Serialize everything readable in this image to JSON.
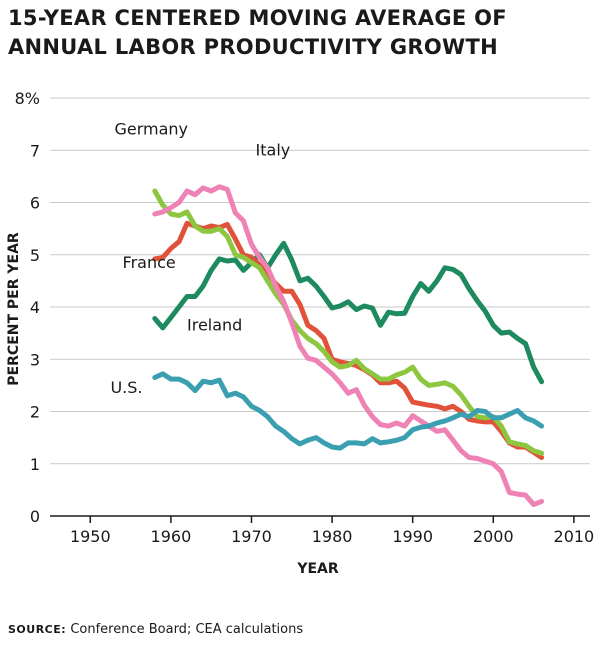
{
  "header": {
    "title_line1": "15-YEAR CENTERED MOVING AVERAGE OF",
    "title_line2": "ANNUAL LABOR PRODUCTIVITY GROWTH"
  },
  "footer": {
    "source_label": "SOURCE:",
    "source_text": "Conference Board; CEA calculations"
  },
  "chart_data": {
    "type": "line",
    "title": "15-YEAR CENTERED MOVING AVERAGE OF ANNUAL LABOR PRODUCTIVITY GROWTH",
    "xlabel": "YEAR",
    "ylabel": "PERCENT PER YEAR",
    "xlim": [
      1945,
      2012
    ],
    "ylim": [
      0,
      8
    ],
    "x_ticks": [
      1950,
      1960,
      1970,
      1980,
      1990,
      2000,
      2010
    ],
    "y_ticks": [
      0,
      1,
      2,
      3,
      4,
      5,
      6,
      7,
      8
    ],
    "y_tick_labels": [
      "0",
      "1",
      "2",
      "3",
      "4",
      "5",
      "6",
      "7",
      "8%"
    ],
    "grid": true,
    "legend": "inline labels",
    "series": [
      {
        "name": "Ireland",
        "color": "#1d8a60",
        "label_at": [
          1962,
          3.55
        ],
        "x": [
          1958,
          1959,
          1960,
          1961,
          1962,
          1963,
          1964,
          1965,
          1966,
          1967,
          1968,
          1969,
          1970,
          1971,
          1972,
          1973,
          1974,
          1975,
          1976,
          1977,
          1978,
          1979,
          1980,
          1981,
          1982,
          1983,
          1984,
          1985,
          1986,
          1987,
          1988,
          1989,
          1990,
          1991,
          1992,
          1993,
          1994,
          1995,
          1996,
          1997,
          1998,
          1999,
          2000,
          2001,
          2002,
          2003,
          2004,
          2005,
          2006
        ],
        "values": [
          3.78,
          3.6,
          3.8,
          4.0,
          4.2,
          4.2,
          4.4,
          4.7,
          4.92,
          4.88,
          4.9,
          4.7,
          4.85,
          5.0,
          4.75,
          5.0,
          5.22,
          4.9,
          4.5,
          4.55,
          4.4,
          4.2,
          3.98,
          4.02,
          4.1,
          3.95,
          4.02,
          3.98,
          3.65,
          3.9,
          3.87,
          3.88,
          4.2,
          4.45,
          4.3,
          4.5,
          4.75,
          4.72,
          4.62,
          4.35,
          4.12,
          3.92,
          3.65,
          3.5,
          3.52,
          3.4,
          3.3,
          2.85,
          2.57
        ]
      },
      {
        "name": "France",
        "color": "#e1523b",
        "label_at": [
          1954,
          4.75
        ],
        "x": [
          1958,
          1959,
          1960,
          1961,
          1962,
          1963,
          1964,
          1965,
          1966,
          1967,
          1968,
          1969,
          1970,
          1971,
          1972,
          1973,
          1974,
          1975,
          1976,
          1977,
          1978,
          1979,
          1980,
          1981,
          1982,
          1983,
          1984,
          1985,
          1986,
          1987,
          1988,
          1989,
          1990,
          1991,
          1992,
          1993,
          1994,
          1995,
          1996,
          1997,
          1998,
          1999,
          2000,
          2001,
          2002,
          2003,
          2004,
          2005,
          2006
        ],
        "values": [
          4.92,
          4.95,
          5.12,
          5.25,
          5.6,
          5.55,
          5.5,
          5.55,
          5.52,
          5.58,
          5.3,
          5.0,
          4.95,
          4.8,
          4.6,
          4.45,
          4.3,
          4.3,
          4.05,
          3.65,
          3.55,
          3.4,
          3.0,
          2.95,
          2.92,
          2.88,
          2.8,
          2.7,
          2.55,
          2.55,
          2.58,
          2.45,
          2.18,
          2.15,
          2.12,
          2.1,
          2.05,
          2.1,
          2.0,
          1.85,
          1.82,
          1.8,
          1.8,
          1.62,
          1.4,
          1.32,
          1.32,
          1.22,
          1.12
        ]
      },
      {
        "name": "Germany",
        "color": "#8dc63f",
        "label_at": [
          1953,
          7.3
        ],
        "x": [
          1958,
          1959,
          1960,
          1961,
          1962,
          1963,
          1964,
          1965,
          1966,
          1967,
          1968,
          1969,
          1970,
          1971,
          1972,
          1973,
          1974,
          1975,
          1976,
          1977,
          1978,
          1979,
          1980,
          1981,
          1982,
          1983,
          1984,
          1985,
          1986,
          1987,
          1988,
          1989,
          1990,
          1991,
          1992,
          1993,
          1994,
          1995,
          1996,
          1997,
          1998,
          1999,
          2000,
          2001,
          2002,
          2003,
          2004,
          2005,
          2006
        ],
        "values": [
          6.22,
          5.95,
          5.78,
          5.75,
          5.82,
          5.55,
          5.45,
          5.45,
          5.5,
          5.35,
          5.0,
          4.95,
          4.85,
          4.75,
          4.5,
          4.25,
          4.05,
          3.75,
          3.55,
          3.4,
          3.3,
          3.15,
          2.95,
          2.85,
          2.88,
          2.98,
          2.82,
          2.72,
          2.62,
          2.62,
          2.7,
          2.75,
          2.85,
          2.62,
          2.5,
          2.52,
          2.55,
          2.48,
          2.32,
          2.1,
          1.9,
          1.88,
          1.9,
          1.72,
          1.42,
          1.38,
          1.35,
          1.25,
          1.2
        ]
      },
      {
        "name": "Italy",
        "color": "#ee82b4",
        "label_at": [
          1970.5,
          6.9
        ],
        "x": [
          1958,
          1959,
          1960,
          1961,
          1962,
          1963,
          1964,
          1965,
          1966,
          1967,
          1968,
          1969,
          1970,
          1971,
          1972,
          1973,
          1974,
          1975,
          1976,
          1977,
          1978,
          1979,
          1980,
          1981,
          1982,
          1983,
          1984,
          1985,
          1986,
          1987,
          1988,
          1989,
          1990,
          1991,
          1992,
          1993,
          1994,
          1995,
          1996,
          1997,
          1998,
          1999,
          2000,
          2001,
          2002,
          2003,
          2004,
          2005,
          2006
        ],
        "values": [
          5.78,
          5.82,
          5.9,
          6.0,
          6.22,
          6.15,
          6.28,
          6.22,
          6.3,
          6.25,
          5.8,
          5.65,
          5.2,
          4.95,
          4.75,
          4.4,
          4.1,
          3.7,
          3.25,
          3.02,
          2.98,
          2.85,
          2.72,
          2.55,
          2.35,
          2.42,
          2.12,
          1.9,
          1.75,
          1.72,
          1.78,
          1.72,
          1.92,
          1.82,
          1.72,
          1.62,
          1.65,
          1.45,
          1.25,
          1.12,
          1.1,
          1.05,
          1.0,
          0.85,
          0.45,
          0.42,
          0.4,
          0.22,
          0.28
        ]
      },
      {
        "name": "U.S.",
        "color": "#3a9fb0",
        "label_at": [
          1952.5,
          2.35
        ],
        "x": [
          1958,
          1959,
          1960,
          1961,
          1962,
          1963,
          1964,
          1965,
          1966,
          1967,
          1968,
          1969,
          1970,
          1971,
          1972,
          1973,
          1974,
          1975,
          1976,
          1977,
          1978,
          1979,
          1980,
          1981,
          1982,
          1983,
          1984,
          1985,
          1986,
          1987,
          1988,
          1989,
          1990,
          1991,
          1992,
          1993,
          1994,
          1995,
          1996,
          1997,
          1998,
          1999,
          2000,
          2001,
          2002,
          2003,
          2004,
          2005,
          2006
        ],
        "values": [
          2.65,
          2.72,
          2.62,
          2.62,
          2.55,
          2.4,
          2.58,
          2.55,
          2.6,
          2.3,
          2.35,
          2.28,
          2.1,
          2.02,
          1.9,
          1.72,
          1.62,
          1.48,
          1.38,
          1.45,
          1.5,
          1.4,
          1.32,
          1.3,
          1.4,
          1.4,
          1.38,
          1.48,
          1.4,
          1.42,
          1.45,
          1.5,
          1.65,
          1.7,
          1.72,
          1.78,
          1.82,
          1.88,
          1.95,
          1.9,
          2.02,
          2.0,
          1.88,
          1.88,
          1.95,
          2.02,
          1.88,
          1.82,
          1.72
        ]
      }
    ]
  }
}
